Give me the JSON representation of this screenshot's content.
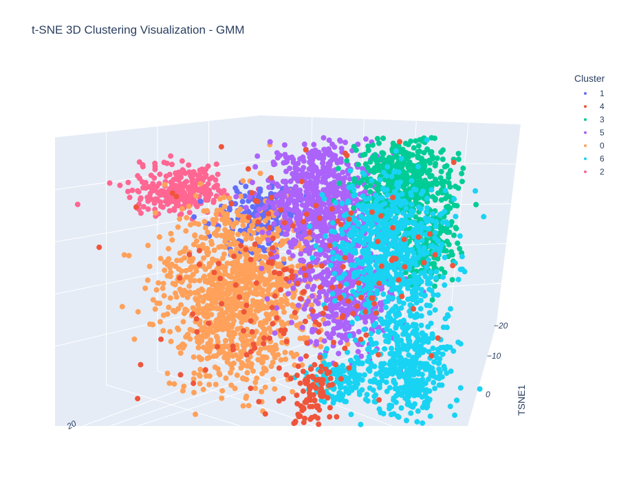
{
  "chart_data": {
    "type": "scatter",
    "title": "t-SNE 3D Clustering Visualization - GMM",
    "legend_title": "Cluster",
    "legend_position": "top-right",
    "legend": [
      {
        "label": "1",
        "color": "#636efa"
      },
      {
        "label": "4",
        "color": "#ef553b"
      },
      {
        "label": "3",
        "color": "#00cc96"
      },
      {
        "label": "5",
        "color": "#ab63fa"
      },
      {
        "label": "0",
        "color": "#ffa15a"
      },
      {
        "label": "6",
        "color": "#19d3f3"
      },
      {
        "label": "2",
        "color": "#ff6692"
      }
    ],
    "axes": {
      "tsne1": {
        "label": "TSNE1",
        "ticks": [
          "−20",
          "−10",
          "0"
        ]
      },
      "tsne2": {
        "ticks": [
          "20"
        ]
      }
    }
  }
}
